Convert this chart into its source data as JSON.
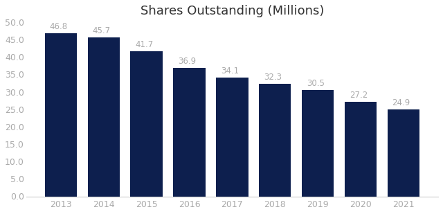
{
  "title": "Shares Outstanding (Millions)",
  "categories": [
    "2013",
    "2014",
    "2015",
    "2016",
    "2017",
    "2018",
    "2019",
    "2020",
    "2021"
  ],
  "values": [
    46.8,
    45.7,
    41.7,
    36.9,
    34.1,
    32.3,
    30.5,
    27.2,
    24.9
  ],
  "bar_color": "#0d1f4e",
  "label_color": "#aaaaaa",
  "background_color": "#ffffff",
  "ylim": [
    0,
    50
  ],
  "yticks": [
    0.0,
    5.0,
    10.0,
    15.0,
    20.0,
    25.0,
    30.0,
    35.0,
    40.0,
    45.0,
    50.0
  ],
  "title_fontsize": 13,
  "label_fontsize": 8.5,
  "tick_fontsize": 9,
  "bar_width": 0.75
}
